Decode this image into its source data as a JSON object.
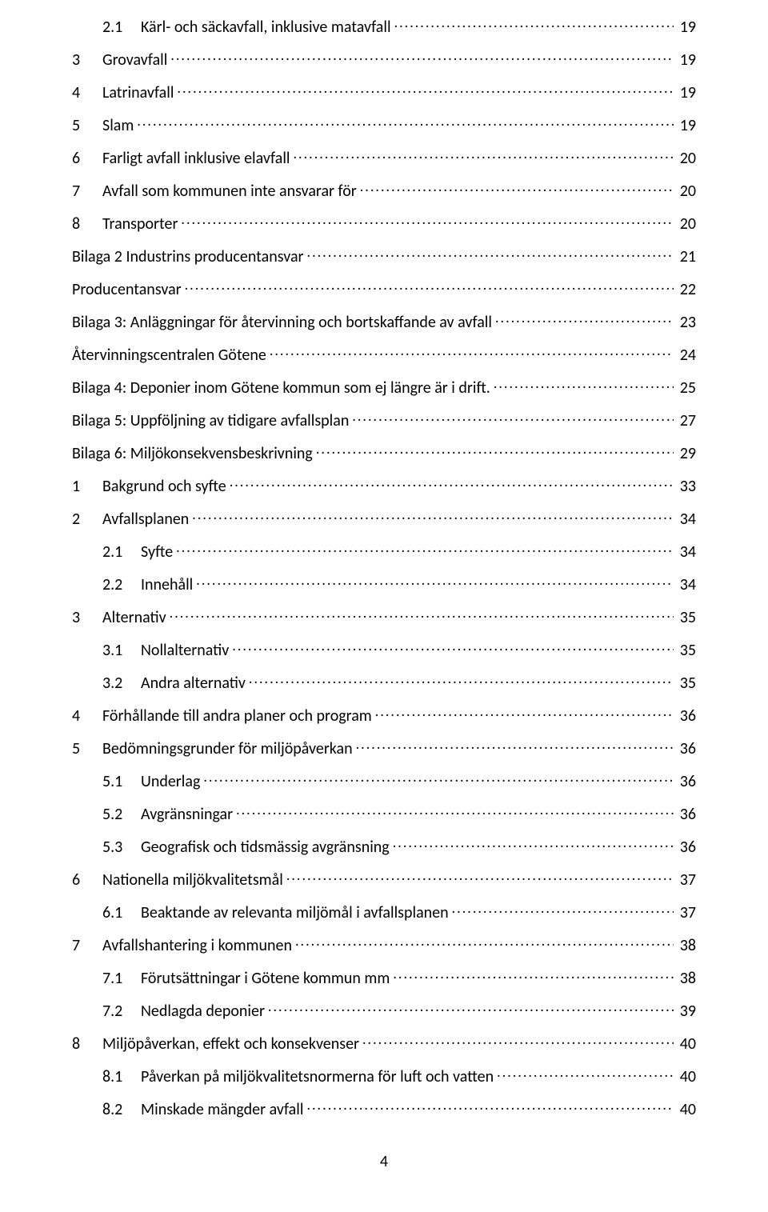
{
  "toc": [
    {
      "level": 2,
      "num": "2.1",
      "title": "Kärl- och säckavfall, inklusive matavfall",
      "page": "19"
    },
    {
      "level": 1,
      "num": "3",
      "title": "Grovavfall",
      "page": "19"
    },
    {
      "level": 1,
      "num": "4",
      "title": "Latrinavfall",
      "page": "19"
    },
    {
      "level": 1,
      "num": "5",
      "title": "Slam",
      "page": "19"
    },
    {
      "level": 1,
      "num": "6",
      "title": "Farligt avfall inklusive elavfall",
      "page": "20"
    },
    {
      "level": 1,
      "num": "7",
      "title": "Avfall som kommunen inte ansvarar för",
      "page": "20"
    },
    {
      "level": 1,
      "num": "8",
      "title": "Transporter",
      "page": "20"
    },
    {
      "level": 0,
      "num": "",
      "title": "Bilaga 2 Industrins producentansvar",
      "page": "21"
    },
    {
      "level": 0,
      "num": "",
      "title": "Producentansvar",
      "page": "22"
    },
    {
      "level": 0,
      "num": "",
      "title": "Bilaga 3: Anläggningar för återvinning och bortskaffande av avfall",
      "page": "23"
    },
    {
      "level": 0,
      "num": "",
      "title": "Återvinningscentralen Götene",
      "page": "24"
    },
    {
      "level": 0,
      "num": "",
      "title": "Bilaga 4: Deponier inom Götene kommun som ej längre är i drift.",
      "page": "25"
    },
    {
      "level": 0,
      "num": "",
      "title": "Bilaga 5: Uppföljning av tidigare avfallsplan",
      "page": "27"
    },
    {
      "level": 0,
      "num": "",
      "title": "Bilaga 6: Miljökonsekvensbeskrivning",
      "page": "29"
    },
    {
      "level": 1,
      "num": "1",
      "title": "Bakgrund och syfte",
      "page": "33"
    },
    {
      "level": 1,
      "num": "2",
      "title": "Avfallsplanen",
      "page": "34"
    },
    {
      "level": 2,
      "num": "2.1",
      "title": "Syfte",
      "page": "34"
    },
    {
      "level": 2,
      "num": "2.2",
      "title": "Innehåll",
      "page": "34"
    },
    {
      "level": 1,
      "num": "3",
      "title": "Alternativ",
      "page": "35"
    },
    {
      "level": 2,
      "num": "3.1",
      "title": "Nollalternativ",
      "page": "35"
    },
    {
      "level": 2,
      "num": "3.2",
      "title": "Andra alternativ",
      "page": "35"
    },
    {
      "level": 1,
      "num": "4",
      "title": "Förhållande till andra planer och program",
      "page": "36"
    },
    {
      "level": 1,
      "num": "5",
      "title": "Bedömningsgrunder för miljöpåverkan",
      "page": "36"
    },
    {
      "level": 2,
      "num": "5.1",
      "title": "Underlag",
      "page": "36"
    },
    {
      "level": 2,
      "num": "5.2",
      "title": "Avgränsningar",
      "page": "36"
    },
    {
      "level": 2,
      "num": "5.3",
      "title": "Geografisk och tidsmässig avgränsning",
      "page": "36"
    },
    {
      "level": 1,
      "num": "6",
      "title": "Nationella miljökvalitetsmål",
      "page": "37"
    },
    {
      "level": 2,
      "num": "6.1",
      "title": "Beaktande av relevanta miljömål i avfallsplanen",
      "page": "37"
    },
    {
      "level": 1,
      "num": "7",
      "title": "Avfallshantering i kommunen",
      "page": "38"
    },
    {
      "level": 2,
      "num": "7.1",
      "title": "Förutsättningar i Götene kommun mm",
      "page": "38"
    },
    {
      "level": 2,
      "num": "7.2",
      "title": "Nedlagda deponier",
      "page": "39"
    },
    {
      "level": 1,
      "num": "8",
      "title": "Miljöpåverkan, effekt och konsekvenser",
      "page": "40"
    },
    {
      "level": 2,
      "num": "8.1",
      "title": "Påverkan på miljökvalitetsnormerna för luft och vatten",
      "page": "40"
    },
    {
      "level": 2,
      "num": "8.2",
      "title": "Minskade mängder avfall",
      "page": "40"
    }
  ],
  "footer_page": "4"
}
